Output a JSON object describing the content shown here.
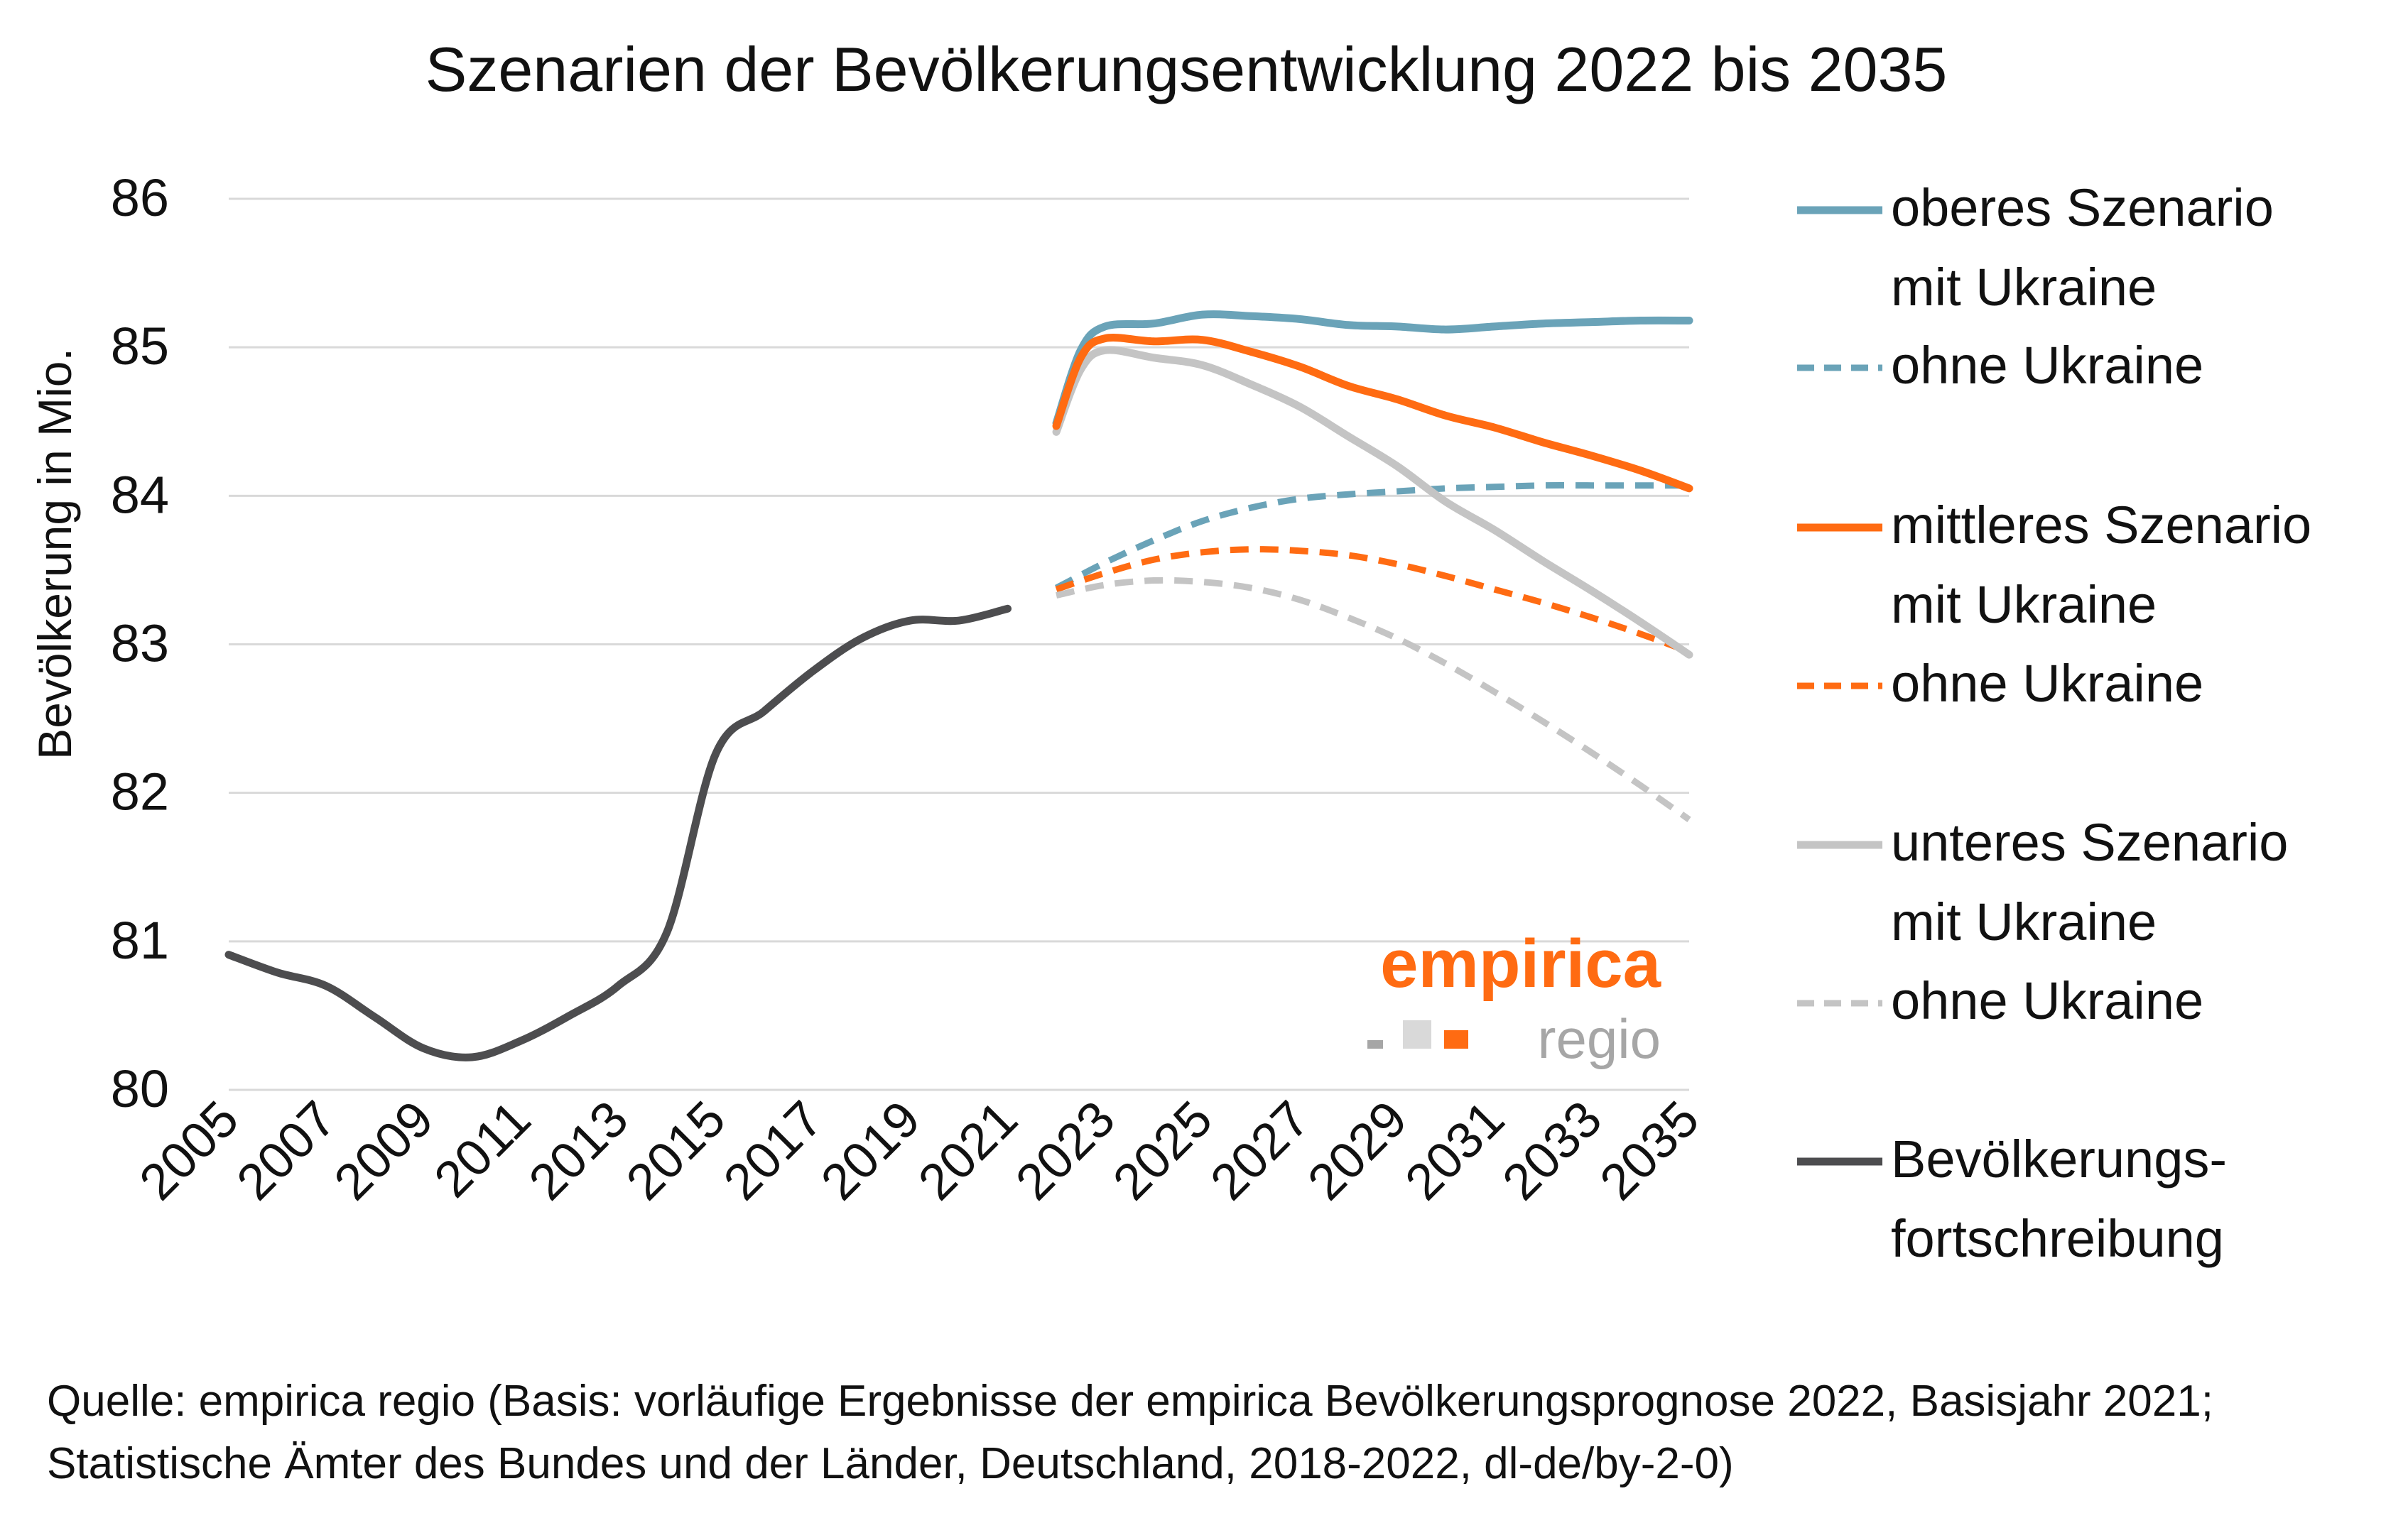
{
  "chart_data": {
    "type": "line",
    "title": "Szenarien der Bevölkerungsentwicklung 2022 bis 2035",
    "ylabel": "Bevölkerung in Mio.",
    "xlabel": "",
    "ylim": [
      80,
      86
    ],
    "yticks": [
      80,
      81,
      82,
      83,
      84,
      85,
      86
    ],
    "xlim": [
      2005,
      2035
    ],
    "xticks": [
      2005,
      2007,
      2009,
      2011,
      2013,
      2015,
      2017,
      2019,
      2021,
      2023,
      2025,
      2027,
      2029,
      2031,
      2033,
      2035
    ],
    "grid": true,
    "legend_position": "right",
    "series": [
      {
        "key": "upper_with",
        "color": "#6aa3b8",
        "dash": false,
        "x": [
          2022,
          2022.5,
          2023,
          2024,
          2025,
          2026,
          2027,
          2028,
          2029,
          2030,
          2031,
          2032,
          2033,
          2034,
          2035
        ],
        "values": [
          84.49,
          84.98,
          85.14,
          85.16,
          85.22,
          85.21,
          85.19,
          85.15,
          85.14,
          85.12,
          85.14,
          85.16,
          85.17,
          85.18,
          85.18
        ]
      },
      {
        "key": "upper_without",
        "color": "#6aa3b8",
        "dash": true,
        "x": [
          2022,
          2023,
          2024,
          2025,
          2026,
          2027,
          2028,
          2029,
          2030,
          2031,
          2032,
          2033,
          2034,
          2035
        ],
        "values": [
          83.38,
          83.55,
          83.7,
          83.83,
          83.92,
          83.98,
          84.01,
          84.03,
          84.05,
          84.06,
          84.07,
          84.07,
          84.07,
          84.07
        ]
      },
      {
        "key": "mid_with",
        "color": "#ff6b12",
        "dash": false,
        "x": [
          2022,
          2022.5,
          2023,
          2024,
          2025,
          2026,
          2027,
          2028,
          2029,
          2030,
          2031,
          2032,
          2033,
          2034,
          2035
        ],
        "values": [
          84.47,
          84.93,
          85.06,
          85.04,
          85.05,
          84.97,
          84.87,
          84.74,
          84.65,
          84.54,
          84.46,
          84.36,
          84.27,
          84.17,
          84.05
        ]
      },
      {
        "key": "mid_without",
        "color": "#ff6b12",
        "dash": true,
        "x": [
          2022,
          2023,
          2024,
          2025,
          2026,
          2027,
          2028,
          2029,
          2030,
          2031,
          2032,
          2033,
          2034,
          2035
        ],
        "values": [
          83.37,
          83.48,
          83.57,
          83.62,
          83.64,
          83.63,
          83.6,
          83.54,
          83.46,
          83.37,
          83.28,
          83.18,
          83.07,
          82.95
        ]
      },
      {
        "key": "low_with",
        "color": "#c4c4c4",
        "dash": false,
        "x": [
          2022,
          2022.5,
          2023,
          2024,
          2025,
          2026,
          2027,
          2028,
          2029,
          2030,
          2031,
          2032,
          2033,
          2034,
          2035
        ],
        "values": [
          84.43,
          84.85,
          84.98,
          84.93,
          84.88,
          84.75,
          84.6,
          84.4,
          84.2,
          83.96,
          83.77,
          83.56,
          83.36,
          83.15,
          82.93
        ]
      },
      {
        "key": "low_without",
        "color": "#c4c4c4",
        "dash": true,
        "x": [
          2022,
          2023,
          2024,
          2025,
          2026,
          2027,
          2028,
          2029,
          2030,
          2031,
          2032,
          2033,
          2034,
          2035
        ],
        "values": [
          83.33,
          83.4,
          83.43,
          83.42,
          83.38,
          83.3,
          83.18,
          83.04,
          82.87,
          82.68,
          82.48,
          82.27,
          82.05,
          81.82
        ]
      },
      {
        "key": "historic",
        "color": "#4d4d4f",
        "dash": false,
        "x": [
          2005,
          2006,
          2007,
          2008,
          2009,
          2010,
          2011,
          2012,
          2013,
          2014,
          2015,
          2016,
          2017,
          2018,
          2019,
          2020,
          2021
        ],
        "values": [
          80.91,
          80.79,
          80.7,
          80.49,
          80.28,
          80.22,
          80.33,
          80.5,
          80.7,
          81.06,
          82.26,
          82.55,
          82.82,
          83.04,
          83.16,
          83.16,
          83.24
        ]
      }
    ]
  },
  "legend": [
    {
      "series": "upper_with",
      "lines": [
        "oberes Szenario",
        "mit Ukraine"
      ]
    },
    {
      "series": "upper_without",
      "lines": [
        "ohne Ukraine"
      ]
    },
    {
      "series": "mid_with",
      "lines": [
        "mittleres Szenario",
        "mit Ukraine"
      ]
    },
    {
      "series": "mid_without",
      "lines": [
        "ohne Ukraine"
      ]
    },
    {
      "series": "low_with",
      "lines": [
        "unteres Szenario",
        "mit Ukraine"
      ]
    },
    {
      "series": "low_without",
      "lines": [
        "ohne Ukraine"
      ]
    },
    {
      "series": "historic",
      "lines": [
        "Bevölkerungs-",
        "fortschreibung"
      ]
    }
  ],
  "logo": {
    "brand": "empirica",
    "sub": "regio",
    "brand_color": "#ff6b12",
    "sub_color": "#a6a6a6"
  },
  "source": {
    "line1": "Quelle: empirica regio (Basis: vorläufige Ergebnisse der empirica Bevölkerungsprognose 2022, Basisjahr 2021;",
    "line2": "Statistische Ämter des Bundes und der Länder, Deutschland, 2018-2022, dl-de/by-2-0)"
  }
}
